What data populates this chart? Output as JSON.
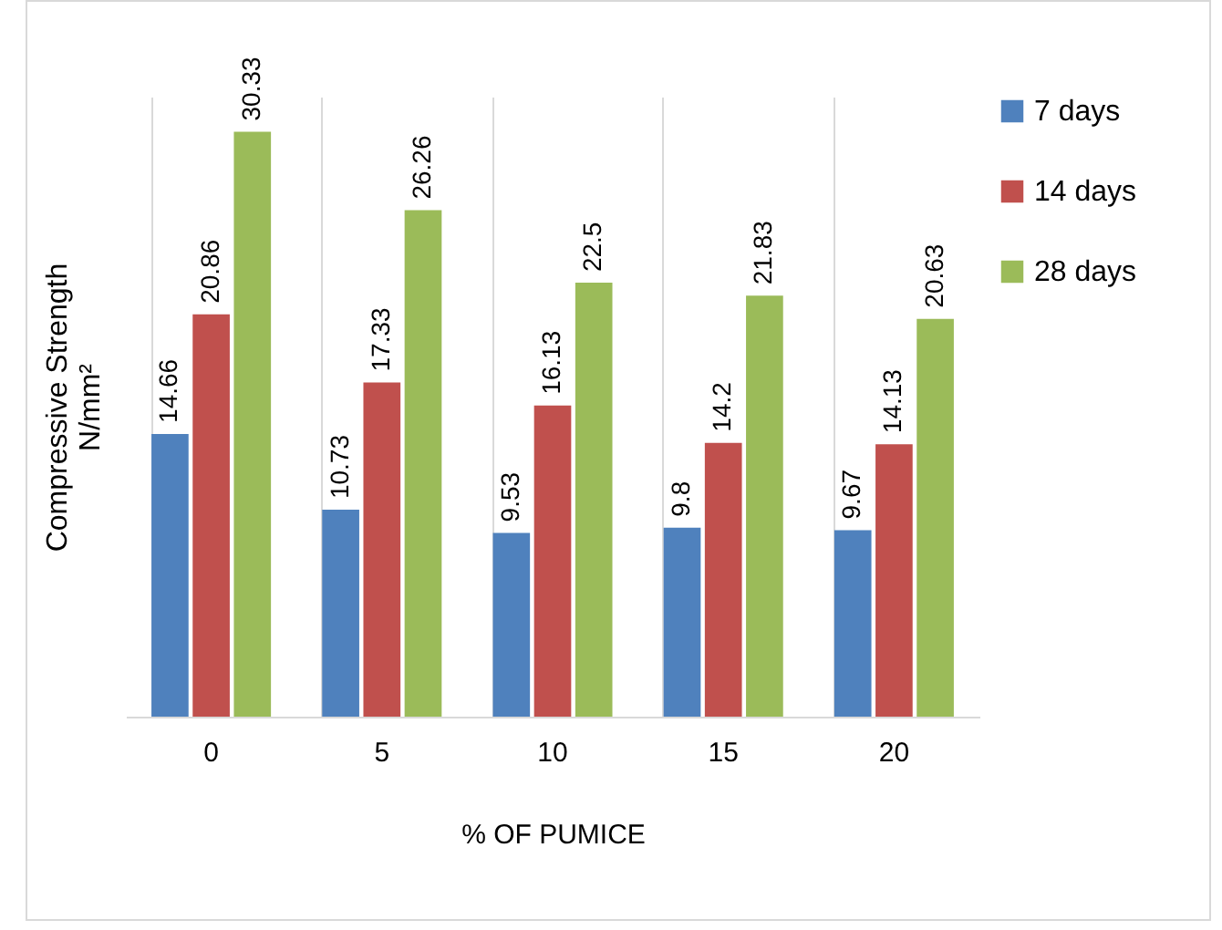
{
  "chart_data": {
    "type": "bar",
    "xlabel": "% OF PUMICE",
    "ylabel": "Compressive Strength N/mm²",
    "categories": [
      "0",
      "5",
      "10",
      "15",
      "20"
    ],
    "series": [
      {
        "name": "7 days",
        "color": "#4f81bd",
        "values": [
          14.66,
          10.73,
          9.53,
          9.8,
          9.67
        ]
      },
      {
        "name": "14 days",
        "color": "#c0504d",
        "values": [
          20.86,
          17.33,
          16.13,
          14.2,
          14.13
        ]
      },
      {
        "name": "28 days",
        "color": "#9bbb59",
        "values": [
          30.33,
          26.26,
          22.5,
          21.83,
          20.63
        ]
      }
    ],
    "data_labels": true,
    "legend": "right",
    "grid": "x"
  }
}
